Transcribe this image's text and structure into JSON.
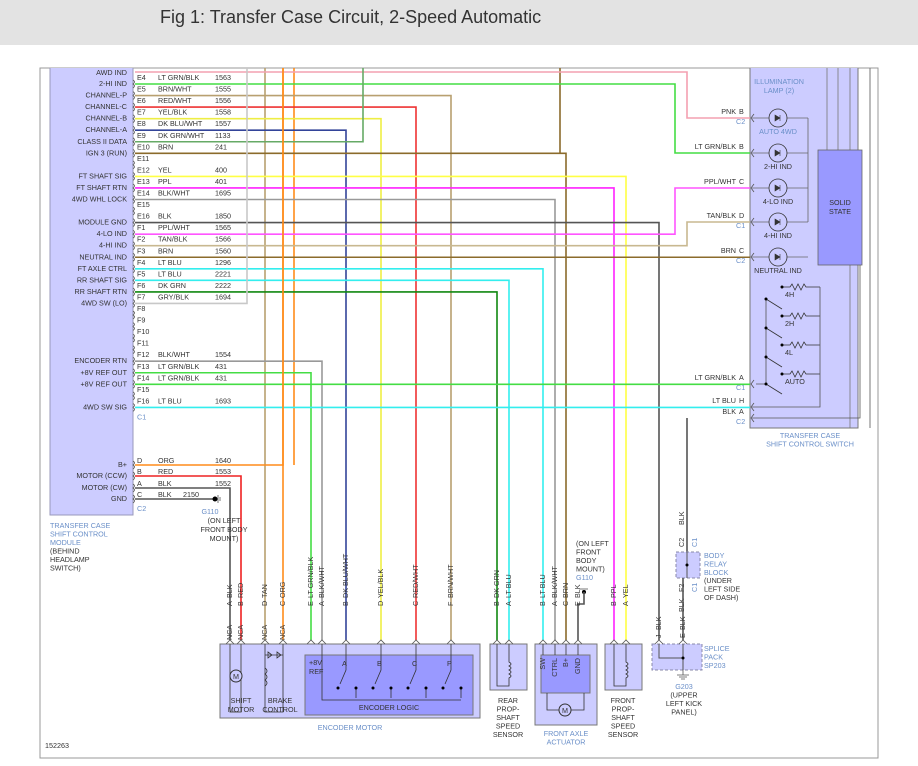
{
  "header": {
    "title": "Fig 1: Transfer Case Circuit, 2-Speed Automatic"
  },
  "figure_id": "152263",
  "colors": {
    "component_fill": "#ccccff",
    "inner_fill": "#9999ff",
    "component_label": "#6a8fc8"
  },
  "module": {
    "name": [
      "TRANSFER CASE",
      "SHIFT CONTROL",
      "MODULE"
    ],
    "location": [
      "(BEHIND",
      "HEADLAMP",
      "SWITCH)"
    ],
    "awd": {
      "func": "AWD IND",
      "color": "#f4a0b0"
    },
    "pins": [
      {
        "pin": "E4",
        "wire": "LT GRN/BLK",
        "circuit": "1563",
        "func": "2-HI IND",
        "color": "#44dd44"
      },
      {
        "pin": "E5",
        "wire": "BRN/WHT",
        "circuit": "1555",
        "func": "CHANNEL-P",
        "color": "#b8a070"
      },
      {
        "pin": "E6",
        "wire": "RED/WHT",
        "circuit": "1556",
        "func": "CHANNEL-C",
        "color": "#ee3333"
      },
      {
        "pin": "E7",
        "wire": "YEL/BLK",
        "circuit": "1558",
        "func": "CHANNEL-B",
        "color": "#eeee44"
      },
      {
        "pin": "E8",
        "wire": "DK BLU/WHT",
        "circuit": "1557",
        "func": "CHANNEL-A",
        "color": "#334499"
      },
      {
        "pin": "E9",
        "wire": "DK GRN/WHT",
        "circuit": "1133",
        "func": "CLASS II DATA",
        "color": "#66aa66"
      },
      {
        "pin": "E10",
        "wire": "BRN",
        "circuit": "241",
        "func": "IGN 3 (RUN)",
        "color": "#8b6b2b"
      },
      {
        "pin": "E11",
        "wire": "",
        "circuit": "",
        "func": "",
        "color": ""
      },
      {
        "pin": "E12",
        "wire": "YEL",
        "circuit": "400",
        "func": "FT SHAFT SIG",
        "color": "#ffff44"
      },
      {
        "pin": "E13",
        "wire": "PPL",
        "circuit": "401",
        "func": "FT SHAFT RTN",
        "color": "#ff22ff"
      },
      {
        "pin": "E14",
        "wire": "BLK/WHT",
        "circuit": "1695",
        "func": "4WD WHL LOCK",
        "color": "#999999"
      },
      {
        "pin": "E15",
        "wire": "",
        "circuit": "",
        "func": "",
        "color": ""
      },
      {
        "pin": "E16",
        "wire": "BLK",
        "circuit": "1850",
        "func": "MODULE GND",
        "color": "#555555"
      },
      {
        "pin": "F1",
        "wire": "PPL/WHT",
        "circuit": "1565",
        "func": "4-LO IND",
        "color": "#ff55ff"
      },
      {
        "pin": "F2",
        "wire": "TAN/BLK",
        "circuit": "1566",
        "func": "4-HI IND",
        "color": "#c8b890"
      },
      {
        "pin": "F3",
        "wire": "BRN",
        "circuit": "1560",
        "func": "NEUTRAL IND",
        "color": "#8b6b2b"
      },
      {
        "pin": "F4",
        "wire": "LT BLU",
        "circuit": "1296",
        "func": "FT AXLE CTRL",
        "color": "#33eeee"
      },
      {
        "pin": "F5",
        "wire": "LT BLU",
        "circuit": "2221",
        "func": "RR SHAFT SIG",
        "color": "#33eeee"
      },
      {
        "pin": "F6",
        "wire": "DK GRN",
        "circuit": "2222",
        "func": "RR SHAFT RTN",
        "color": "#118811"
      },
      {
        "pin": "F7",
        "wire": "GRY/BLK",
        "circuit": "1694",
        "func": "4WD SW (LO)",
        "color": "#c8c8c8"
      },
      {
        "pin": "F8",
        "wire": "",
        "circuit": "",
        "func": "",
        "color": ""
      },
      {
        "pin": "F9",
        "wire": "",
        "circuit": "",
        "func": "",
        "color": ""
      },
      {
        "pin": "F10",
        "wire": "",
        "circuit": "",
        "func": "",
        "color": ""
      },
      {
        "pin": "F11",
        "wire": "",
        "circuit": "",
        "func": "",
        "color": ""
      },
      {
        "pin": "F12",
        "wire": "BLK/WHT",
        "circuit": "1554",
        "func": "ENCODER RTN",
        "color": "#999999"
      },
      {
        "pin": "F13",
        "wire": "LT GRN/BLK",
        "circuit": "431",
        "func": "+8V REF OUT",
        "color": "#44dd44"
      },
      {
        "pin": "F14",
        "wire": "LT GRN/BLK",
        "circuit": "431",
        "func": "+8V REF OUT",
        "color": "#44dd44"
      },
      {
        "pin": "F15",
        "wire": "",
        "circuit": "",
        "func": "",
        "color": ""
      },
      {
        "pin": "F16",
        "wire": "LT BLU",
        "circuit": "1693",
        "func": "4WD SW SIG",
        "color": "#33eeee"
      }
    ],
    "c1_label": "C1",
    "c2_pins": [
      {
        "pin": "D",
        "wire": "ORG",
        "circuit": "1640",
        "func": "B+",
        "color": "#ff8c1a"
      },
      {
        "pin": "B",
        "wire": "RED",
        "circuit": "1553",
        "func": "MOTOR (CCW)",
        "color": "#ee2222"
      },
      {
        "pin": "A",
        "wire": "BLK",
        "circuit": "1552",
        "func": "MOTOR (CW)",
        "color": "#555555"
      },
      {
        "pin": "C",
        "wire": "BLK",
        "circuit": "2150",
        "func": "GND",
        "color": "#555555"
      }
    ],
    "c2_label": "C2"
  },
  "g110_left": [
    "G110",
    "(ON LEFT",
    "FRONT BODY",
    "MOUNT)"
  ],
  "g110_mid": [
    "(ON LEFT",
    "FRONT",
    "BODY",
    "MOUNT)",
    "G110"
  ],
  "switch": {
    "name": [
      "TRANSFER CASE",
      "SHIFT CONTROL SWITCH"
    ],
    "illumination": [
      "ILLUMINATION",
      "LAMP (2)"
    ],
    "indicators": [
      "AUTO 4WD",
      "2-HI IND",
      "4-LO IND",
      "4-HI IND",
      "NEUTRAL IND"
    ],
    "solid_state": [
      "SOLID",
      "STATE"
    ],
    "positions": [
      "4H",
      "2H",
      "4L",
      "AUTO"
    ],
    "pins": [
      {
        "wire": "PNK",
        "pin": "B",
        "conn": "C2"
      },
      {
        "wire": "LT GRN/BLK",
        "pin": "B",
        "conn": ""
      },
      {
        "wire": "PPL/WHT",
        "pin": "C",
        "conn": ""
      },
      {
        "wire": "TAN/BLK",
        "pin": "D",
        "conn": "C1"
      },
      {
        "wire": "BRN",
        "pin": "C",
        "conn": "C2"
      },
      {
        "wire": "LT GRN/BLK",
        "pin": "A",
        "conn": "C1"
      },
      {
        "wire": "LT BLU",
        "pin": "H",
        "conn": ""
      },
      {
        "wire": "BLK",
        "pin": "A",
        "conn": "C2"
      }
    ]
  },
  "relay_block": {
    "name": [
      "BODY",
      "RELAY",
      "BLOCK"
    ],
    "location": [
      "(UNDER",
      "LEFT SIDE",
      "OF DASH)"
    ],
    "top_pin": "C2",
    "top_conn": "C1",
    "bottom_pin": "F2",
    "bottom_conn": "C1",
    "wire_top": "BLK",
    "wire_bottom": "BLK"
  },
  "splice": {
    "name": [
      "SPLICE",
      "PACK",
      "SP203"
    ],
    "ground": [
      "G203",
      "(UPPER",
      "LEFT KICK",
      "PANEL)"
    ]
  },
  "bottom_pins": [
    {
      "pin": "A",
      "wire": "BLK",
      "nca": "NCA",
      "color": "#555555"
    },
    {
      "pin": "B",
      "wire": "RED",
      "nca": "NCA",
      "color": "#ee2222"
    },
    {
      "pin": "D",
      "wire": "TAN",
      "nca": "NCA",
      "color": "#b8a070"
    },
    {
      "pin": "C",
      "wire": "ORG",
      "nca": "NCA",
      "color": "#ff8c1a"
    },
    {
      "pin": "E",
      "wire": "LT GRN/BLK",
      "nca": "",
      "color": "#44dd44"
    },
    {
      "pin": "A",
      "wire": "BLK/WHT",
      "nca": "",
      "color": "#999999"
    },
    {
      "pin": "B",
      "wire": "DK BLU/WHT",
      "nca": "",
      "color": "#7788cc"
    },
    {
      "pin": "D",
      "wire": "YEL/BLK",
      "nca": "",
      "color": "#eeee44"
    },
    {
      "pin": "C",
      "wire": "RED/WHT",
      "nca": "",
      "color": "#ee3333"
    },
    {
      "pin": "F",
      "wire": "BRN/WHT",
      "nca": "",
      "color": "#b8a070"
    },
    {
      "pin": "B",
      "wire": "DK GRN",
      "nca": "",
      "color": "#118811"
    },
    {
      "pin": "A",
      "wire": "LT BLU",
      "nca": "",
      "color": "#33eeee"
    },
    {
      "pin": "B",
      "wire": "LT BLU",
      "nca": "",
      "color": "#33eeee"
    },
    {
      "pin": "A",
      "wire": "BLK/WHT",
      "nca": "",
      "color": "#999999"
    },
    {
      "pin": "C",
      "wire": "BRN",
      "nca": "",
      "color": "#8b6b2b"
    },
    {
      "pin": "E",
      "wire": "BLK",
      "nca": "",
      "color": "#555555"
    },
    {
      "pin": "B",
      "wire": "PPL",
      "nca": "",
      "color": "#ff22ff"
    },
    {
      "pin": "A",
      "wire": "YEL",
      "nca": "",
      "color": "#ffff44"
    },
    {
      "pin": "J",
      "wire": "BLK",
      "nca": "",
      "color": "#555555"
    },
    {
      "pin": "E",
      "wire": "BLK",
      "nca": "",
      "color": "#555555"
    }
  ],
  "components": {
    "shift_motor": [
      "SHIFT",
      "MOTOR"
    ],
    "brake_control": [
      "BRAKE",
      "CONTROL"
    ],
    "encoder_ref": [
      "+8V",
      "REF"
    ],
    "encoder_channels": [
      "A",
      "B",
      "C",
      "P"
    ],
    "encoder_logic": "ENCODER LOGIC",
    "encoder_motor": "ENCODER MOTOR",
    "motor_symbol": "M",
    "rear_sensor": [
      "REAR",
      "PROP-",
      "SHAFT",
      "SPEED",
      "SENSOR"
    ],
    "actuator_pins": [
      "SW",
      "CTRL",
      "B+",
      "GND"
    ],
    "actuator": [
      "FRONT AXLE",
      "ACTUATOR"
    ],
    "front_sensor": [
      "FRONT",
      "PROP-",
      "SHAFT",
      "SPEED",
      "SENSOR"
    ]
  }
}
